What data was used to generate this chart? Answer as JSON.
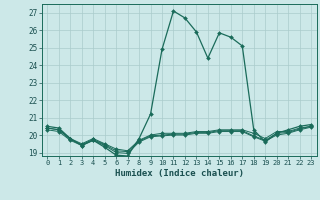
{
  "xlabel": "Humidex (Indice chaleur)",
  "ylabel": "",
  "xlim": [
    -0.5,
    23.5
  ],
  "ylim": [
    18.8,
    27.5
  ],
  "yticks": [
    19,
    20,
    21,
    22,
    23,
    24,
    25,
    26,
    27
  ],
  "xticks": [
    0,
    1,
    2,
    3,
    4,
    5,
    6,
    7,
    8,
    9,
    10,
    11,
    12,
    13,
    14,
    15,
    16,
    17,
    18,
    19,
    20,
    21,
    22,
    23
  ],
  "bg_color": "#cce8e8",
  "grid_color": "#aacccc",
  "line_color": "#1a6b5a",
  "series": [
    {
      "x": [
        0,
        1,
        2,
        3,
        4,
        5,
        6,
        7,
        8,
        9,
        10,
        11,
        12,
        13,
        14,
        15,
        16,
        17,
        18,
        19,
        20,
        21,
        22,
        23
      ],
      "y": [
        20.5,
        20.4,
        19.8,
        19.4,
        19.7,
        19.3,
        18.85,
        18.8,
        19.8,
        21.2,
        24.9,
        27.1,
        26.7,
        25.9,
        24.4,
        25.85,
        25.6,
        25.1,
        20.3,
        19.6,
        20.1,
        20.3,
        20.5,
        20.6
      ],
      "marker": "D",
      "markersize": 2.0,
      "linewidth": 0.9
    },
    {
      "x": [
        0,
        1,
        2,
        3,
        4,
        5,
        6,
        7,
        8,
        9,
        10,
        11,
        12,
        13,
        14,
        15,
        16,
        17,
        18,
        19,
        20,
        21,
        22,
        23
      ],
      "y": [
        20.4,
        20.3,
        19.8,
        19.5,
        19.8,
        19.5,
        19.2,
        19.1,
        19.7,
        20.0,
        20.1,
        20.1,
        20.1,
        20.2,
        20.2,
        20.3,
        20.3,
        20.3,
        20.1,
        19.8,
        20.2,
        20.2,
        20.4,
        20.5
      ],
      "marker": "D",
      "markersize": 2.0,
      "linewidth": 0.7
    },
    {
      "x": [
        0,
        1,
        2,
        3,
        4,
        5,
        6,
        7,
        8,
        9,
        10,
        11,
        12,
        13,
        14,
        15,
        16,
        17,
        18,
        19,
        20,
        21,
        22,
        23
      ],
      "y": [
        20.4,
        20.3,
        19.75,
        19.45,
        19.75,
        19.45,
        19.1,
        19.05,
        19.65,
        19.95,
        20.0,
        20.05,
        20.05,
        20.15,
        20.15,
        20.25,
        20.25,
        20.25,
        19.95,
        19.7,
        20.1,
        20.15,
        20.35,
        20.5
      ],
      "marker": "D",
      "markersize": 2.0,
      "linewidth": 0.7
    },
    {
      "x": [
        0,
        1,
        2,
        3,
        4,
        5,
        6,
        7,
        8,
        9,
        10,
        11,
        12,
        13,
        14,
        15,
        16,
        17,
        18,
        19,
        20,
        21,
        22,
        23
      ],
      "y": [
        20.3,
        20.2,
        19.7,
        19.4,
        19.7,
        19.4,
        19.0,
        18.95,
        19.6,
        19.9,
        19.95,
        20.0,
        20.0,
        20.1,
        20.1,
        20.2,
        20.2,
        20.2,
        19.9,
        19.65,
        20.0,
        20.1,
        20.3,
        20.45
      ],
      "marker": "D",
      "markersize": 2.0,
      "linewidth": 0.7
    }
  ]
}
